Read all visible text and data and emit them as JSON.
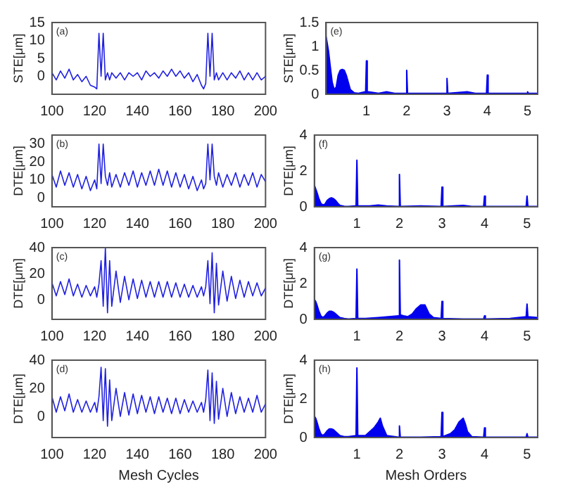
{
  "chart_data": [
    {
      "type": "line",
      "ylabel": "STE[μm]",
      "annotations": [
        "(a)"
      ],
      "marker": "none",
      "xlim": [
        100,
        200
      ],
      "xticks": [
        100,
        120,
        140,
        160,
        180,
        200
      ],
      "ylim": [
        -5,
        15
      ],
      "yticks": [
        0,
        5,
        10,
        15
      ],
      "x": [
        100,
        102,
        104,
        106,
        108,
        110,
        112,
        114,
        116,
        118,
        120,
        121,
        122,
        123,
        124,
        125,
        126,
        127,
        128,
        130,
        132,
        134,
        136,
        138,
        140,
        142,
        144,
        146,
        148,
        150,
        152,
        154,
        156,
        158,
        160,
        162,
        164,
        166,
        168,
        170,
        171,
        172,
        173,
        174,
        175,
        176,
        177,
        178,
        180,
        182,
        184,
        186,
        188,
        190,
        192,
        194,
        196,
        198,
        200
      ],
      "series": [
        {
          "color": "#2020e0",
          "values": [
            1,
            -1,
            1.5,
            -0.5,
            2,
            -1,
            0.5,
            -1.5,
            0,
            -2.5,
            -3,
            -3.5,
            12,
            0,
            12,
            -1,
            1,
            -1,
            1,
            -0.5,
            1,
            -1,
            1,
            0,
            1,
            -1,
            1.5,
            0,
            1,
            -0.5,
            1.5,
            0,
            2,
            0,
            1.5,
            -0.5,
            1,
            -1.5,
            0.5,
            -2.5,
            -3.5,
            -2,
            12,
            0,
            12,
            -1,
            1,
            -1,
            1,
            -1,
            1,
            -0.5,
            1.5,
            -1,
            1,
            -1,
            1,
            -1,
            0
          ]
        }
      ]
    },
    {
      "type": "area",
      "ylabel": "STE[μm]",
      "annotations": [
        "(e)"
      ],
      "xlim": [
        0,
        5.25
      ],
      "xticks": [
        1,
        2,
        3,
        4,
        5
      ],
      "ylim": [
        0,
        1.5
      ],
      "yticks": [
        0,
        0.5,
        1,
        1.5
      ],
      "x": [
        0,
        0.03,
        0.06,
        0.1,
        0.15,
        0.2,
        0.25,
        0.3,
        0.35,
        0.4,
        0.45,
        0.5,
        0.55,
        0.6,
        0.7,
        0.8,
        0.95,
        0.98,
        1,
        1.02,
        1.05,
        1.3,
        1.5,
        1.7,
        1.98,
        2,
        2.02,
        2.5,
        2.98,
        3,
        3.02,
        3.5,
        3.7,
        3.98,
        4,
        4.02,
        4.5,
        4.98,
        5,
        5.02,
        5.25
      ],
      "series": [
        {
          "color": "#0000ee",
          "values": [
            1.2,
            1.05,
            0.9,
            0.6,
            0.25,
            0.1,
            0.15,
            0.4,
            0.5,
            0.52,
            0.5,
            0.4,
            0.25,
            0.1,
            0.03,
            0.02,
            0.05,
            0.02,
            0.7,
            0.02,
            0.05,
            0.02,
            0.05,
            0.02,
            0.02,
            0.5,
            0.02,
            0.02,
            0.02,
            0.33,
            0.02,
            0.05,
            0.02,
            0.02,
            0.4,
            0.02,
            0.02,
            0.02,
            0.05,
            0.02,
            0.02
          ]
        }
      ]
    },
    {
      "type": "line",
      "ylabel": "DTE[μm]",
      "annotations": [
        "(b)"
      ],
      "marker": "none",
      "xlim": [
        100,
        200
      ],
      "xticks": [
        100,
        120,
        140,
        160,
        180,
        200
      ],
      "ylim": [
        -5,
        35
      ],
      "yticks": [
        0,
        10,
        20,
        30
      ],
      "x": [
        100,
        102,
        104,
        106,
        108,
        110,
        112,
        114,
        116,
        118,
        120,
        121,
        122,
        123,
        124,
        125,
        126,
        127,
        128,
        130,
        132,
        134,
        136,
        138,
        140,
        142,
        144,
        146,
        148,
        150,
        152,
        154,
        156,
        158,
        160,
        162,
        164,
        166,
        168,
        170,
        171,
        172,
        173,
        174,
        175,
        176,
        177,
        178,
        180,
        182,
        184,
        186,
        188,
        190,
        192,
        194,
        196,
        198,
        200
      ],
      "series": [
        {
          "color": "#2020e0",
          "values": [
            13,
            6,
            15,
            7,
            14,
            6,
            13,
            5,
            12,
            4,
            10,
            5,
            30,
            8,
            30,
            12,
            7,
            14,
            6,
            13,
            6,
            14,
            7,
            15,
            6,
            14,
            7,
            15,
            7,
            16,
            7,
            15,
            6,
            14,
            6,
            13,
            5,
            12,
            4,
            10,
            5,
            8,
            30,
            10,
            30,
            12,
            7,
            14,
            6,
            13,
            7,
            14,
            6,
            13,
            7,
            14,
            6,
            13,
            9
          ]
        }
      ]
    },
    {
      "type": "area",
      "ylabel": "DTE[μm]",
      "annotations": [
        "(f)"
      ],
      "xlim": [
        0,
        5.25
      ],
      "xticks": [
        1,
        2,
        3,
        4,
        5
      ],
      "ylim": [
        0,
        4
      ],
      "yticks": [
        0,
        2,
        4
      ],
      "x": [
        0,
        0.03,
        0.06,
        0.1,
        0.15,
        0.2,
        0.25,
        0.3,
        0.35,
        0.4,
        0.45,
        0.5,
        0.55,
        0.6,
        0.7,
        0.8,
        0.95,
        0.98,
        1,
        1.02,
        1.05,
        1.3,
        1.5,
        1.7,
        1.98,
        2,
        2.02,
        2.5,
        2.98,
        3,
        3.02,
        3.5,
        3.7,
        3.98,
        4,
        4.02,
        4.5,
        4.98,
        5,
        5.02,
        5.25
      ],
      "series": [
        {
          "color": "#0000ee",
          "values": [
            1.2,
            1.0,
            0.8,
            0.5,
            0.2,
            0.1,
            0.15,
            0.35,
            0.45,
            0.5,
            0.45,
            0.35,
            0.2,
            0.08,
            0.03,
            0.02,
            0.05,
            0.02,
            2.6,
            0.02,
            0.05,
            0.05,
            0.1,
            0.05,
            0.02,
            1.8,
            0.02,
            0.05,
            0.02,
            1.1,
            0.02,
            0.08,
            0.02,
            0.02,
            0.6,
            0.02,
            0.02,
            0.02,
            0.6,
            0.02,
            0.02
          ]
        }
      ]
    },
    {
      "type": "line",
      "ylabel": "DTE[μm]",
      "annotations": [
        "(c)"
      ],
      "marker": "none",
      "xlim": [
        100,
        200
      ],
      "xticks": [
        100,
        120,
        140,
        160,
        180,
        200
      ],
      "ylim": [
        -15,
        40
      ],
      "yticks": [
        0,
        20,
        40
      ],
      "x": [
        100,
        102,
        104,
        106,
        108,
        110,
        112,
        114,
        116,
        118,
        120,
        121,
        122,
        123,
        124,
        125,
        126,
        127,
        128,
        130,
        132,
        134,
        136,
        138,
        140,
        142,
        144,
        146,
        148,
        150,
        152,
        154,
        156,
        158,
        160,
        162,
        164,
        166,
        168,
        170,
        171,
        172,
        173,
        174,
        175,
        176,
        177,
        178,
        180,
        182,
        184,
        186,
        188,
        190,
        192,
        194,
        196,
        198,
        200
      ],
      "series": [
        {
          "color": "#2020e0",
          "values": [
            13,
            3,
            14,
            4,
            16,
            3,
            12,
            2,
            11,
            3,
            10,
            2,
            12,
            30,
            -5,
            40,
            -10,
            30,
            -5,
            22,
            -2,
            18,
            0,
            16,
            1,
            15,
            2,
            14,
            2,
            14,
            2,
            14,
            2,
            13,
            2,
            12,
            2,
            11,
            2,
            10,
            3,
            10,
            30,
            -3,
            36,
            -10,
            28,
            -4,
            22,
            -1,
            18,
            1,
            15,
            2,
            14,
            3,
            13,
            3,
            9
          ]
        }
      ]
    },
    {
      "type": "area",
      "ylabel": "DTE[μm]",
      "annotations": [
        "(g)"
      ],
      "xlim": [
        0,
        5.25
      ],
      "xticks": [
        1,
        2,
        3,
        4,
        5
      ],
      "ylim": [
        0,
        4
      ],
      "yticks": [
        0,
        2,
        4
      ],
      "x": [
        0,
        0.03,
        0.06,
        0.1,
        0.15,
        0.2,
        0.25,
        0.3,
        0.35,
        0.4,
        0.45,
        0.5,
        0.55,
        0.6,
        0.7,
        0.8,
        0.98,
        1,
        1.02,
        1.2,
        1.5,
        1.98,
        2,
        2.02,
        2.1,
        2.2,
        2.3,
        2.4,
        2.5,
        2.6,
        2.7,
        2.8,
        2.98,
        3,
        3.02,
        3.5,
        3.98,
        4,
        4.02,
        4.6,
        4.98,
        5,
        5.02,
        5.25
      ],
      "series": [
        {
          "color": "#0000ee",
          "values": [
            1.1,
            1.0,
            0.8,
            0.5,
            0.2,
            0.1,
            0.2,
            0.35,
            0.45,
            0.45,
            0.4,
            0.3,
            0.2,
            0.1,
            0.05,
            0.02,
            0.05,
            2.8,
            0.05,
            0.05,
            0.1,
            0.2,
            3.3,
            0.25,
            0.2,
            0.15,
            0.3,
            0.6,
            0.8,
            0.8,
            0.3,
            0.1,
            0.05,
            1.0,
            0.05,
            0.02,
            0.02,
            0.2,
            0.02,
            0.05,
            0.15,
            0.85,
            0.15,
            0.1
          ]
        }
      ]
    },
    {
      "type": "line",
      "ylabel": "DTE[μm]",
      "xlabel": "Mesh Cycles",
      "annotations": [
        "(d)"
      ],
      "marker": "none",
      "xlim": [
        100,
        200
      ],
      "xticks": [
        100,
        120,
        140,
        160,
        180,
        200
      ],
      "ylim": [
        -15,
        40
      ],
      "yticks": [
        0,
        20,
        40
      ],
      "x": [
        100,
        102,
        104,
        106,
        108,
        110,
        112,
        114,
        116,
        118,
        120,
        121,
        122,
        123,
        124,
        125,
        126,
        127,
        128,
        130,
        132,
        134,
        136,
        138,
        140,
        142,
        144,
        146,
        148,
        150,
        152,
        154,
        156,
        158,
        160,
        162,
        164,
        166,
        168,
        170,
        171,
        172,
        173,
        174,
        175,
        176,
        177,
        178,
        180,
        182,
        184,
        186,
        188,
        190,
        192,
        194,
        196,
        198,
        200
      ],
      "series": [
        {
          "color": "#2020e0",
          "values": [
            14,
            3,
            14,
            4,
            16,
            3,
            12,
            3,
            11,
            3,
            10,
            3,
            14,
            35,
            -3,
            34,
            -7,
            26,
            -3,
            20,
            0,
            17,
            1,
            16,
            2,
            15,
            3,
            14,
            2,
            14,
            3,
            13,
            2,
            13,
            2,
            12,
            3,
            11,
            3,
            10,
            3,
            12,
            33,
            -3,
            31,
            -5,
            25,
            -2,
            20,
            0,
            17,
            2,
            14,
            3,
            13,
            3,
            15,
            3,
            9
          ]
        }
      ]
    },
    {
      "type": "area",
      "ylabel": "DTE[μm]",
      "xlabel": "Mesh Orders",
      "annotations": [
        "(h)"
      ],
      "xlim": [
        0,
        5.25
      ],
      "xticks": [
        1,
        2,
        3,
        4,
        5
      ],
      "ylim": [
        0,
        4
      ],
      "yticks": [
        0,
        2,
        4
      ],
      "x": [
        0,
        0.03,
        0.06,
        0.1,
        0.15,
        0.2,
        0.25,
        0.3,
        0.35,
        0.4,
        0.45,
        0.5,
        0.55,
        0.6,
        0.7,
        0.8,
        0.98,
        1,
        1.02,
        1.2,
        1.3,
        1.4,
        1.5,
        1.55,
        1.6,
        1.7,
        1.98,
        2,
        2.02,
        2.5,
        2.98,
        3,
        3.02,
        3.2,
        3.3,
        3.4,
        3.5,
        3.55,
        3.6,
        3.7,
        3.98,
        4,
        4.02,
        4.5,
        4.98,
        5,
        5.02,
        5.25
      ],
      "series": [
        {
          "color": "#0000ee",
          "values": [
            1.1,
            1.0,
            0.8,
            0.5,
            0.2,
            0.1,
            0.2,
            0.35,
            0.45,
            0.45,
            0.4,
            0.3,
            0.2,
            0.1,
            0.05,
            0.05,
            0.1,
            3.6,
            0.1,
            0.1,
            0.3,
            0.5,
            0.8,
            1.0,
            0.6,
            0.1,
            0.02,
            0.6,
            0.02,
            0.02,
            0.05,
            1.3,
            0.05,
            0.2,
            0.4,
            0.8,
            1.0,
            0.7,
            0.3,
            0.05,
            0.02,
            0.5,
            0.02,
            0.02,
            0.02,
            0.2,
            0.02,
            0.02
          ]
        }
      ]
    }
  ]
}
